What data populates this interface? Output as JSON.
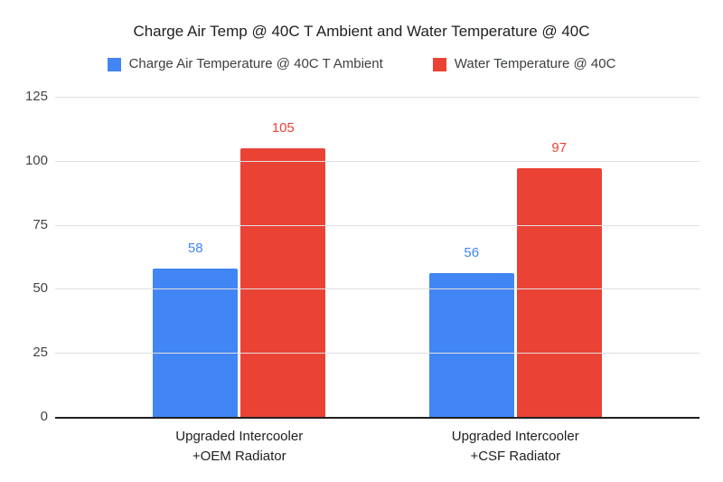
{
  "chart_data": {
    "type": "bar",
    "title": "Charge Air Temp @ 40C T Ambient and Water Temperature @ 40C",
    "categories": [
      [
        "Upgraded Intercooler",
        "+OEM Radiator"
      ],
      [
        "Upgraded Intercooler",
        "+CSF Radiator"
      ]
    ],
    "series": [
      {
        "name": "Charge Air Temperature @ 40C T Ambient",
        "color": "#4285F4",
        "values": [
          58,
          56
        ]
      },
      {
        "name": "Water Temperature @ 40C",
        "color": "#EA4335",
        "values": [
          105,
          97
        ]
      }
    ],
    "y_ticks": [
      0,
      25,
      50,
      75,
      100,
      125
    ],
    "ylim": [
      0,
      125
    ],
    "grid": true,
    "legend_position": "top",
    "data_labels": true,
    "colors": {
      "background": "#ffffff",
      "gridline": "#e0e0e0",
      "axis_line": "#212121",
      "tick_label": "#444444",
      "category_label": "#212121",
      "title": "#212121"
    }
  }
}
